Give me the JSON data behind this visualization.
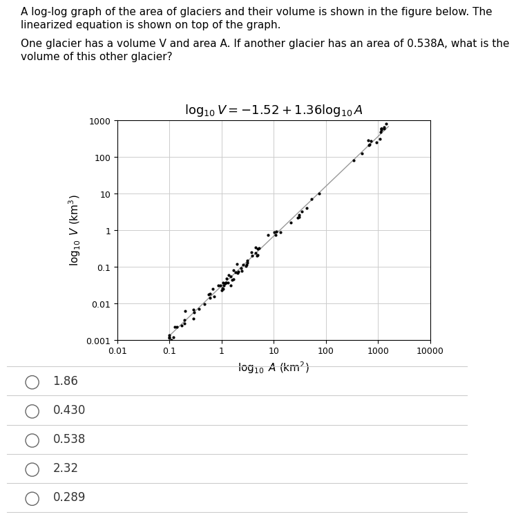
{
  "paragraph_line1": "A log-log graph of the area of glaciers and their volume is shown in the figure below. The",
  "paragraph_line2": "linearized equation is shown on top of the graph.",
  "paragraph_line3": "One glacier has a volume V and area A. If another glacier has an area of 0.538A, what is the",
  "paragraph_line4": "volume of this other glacier?",
  "equation_latex": "$\\log_{10} V = -1.52 + 1.36\\log_{10} A$",
  "xlabel_latex": "$\\log_{10}$ $A$ (km$^2$)",
  "ylabel_latex": "$\\log_{10}$ $V$ (km$^3$)",
  "xmin": 0.01,
  "xmax": 10000,
  "ymin": 0.001,
  "ymax": 1000,
  "intercept": -1.52,
  "slope": 1.36,
  "choices": [
    "1.86",
    "0.430",
    "0.538",
    "2.32",
    "0.289"
  ],
  "bg_color": "#ffffff",
  "text_color": "#000000",
  "choice_text_color": "#333333",
  "dot_color": "#000000",
  "line_color": "#999999",
  "grid_color": "#cccccc",
  "separator_color": "#cccccc",
  "radio_color": "#666666",
  "para_fontsize": 11,
  "equation_fontsize": 13,
  "tick_fontsize": 9,
  "axis_label_fontsize": 11,
  "choice_fontsize": 12
}
